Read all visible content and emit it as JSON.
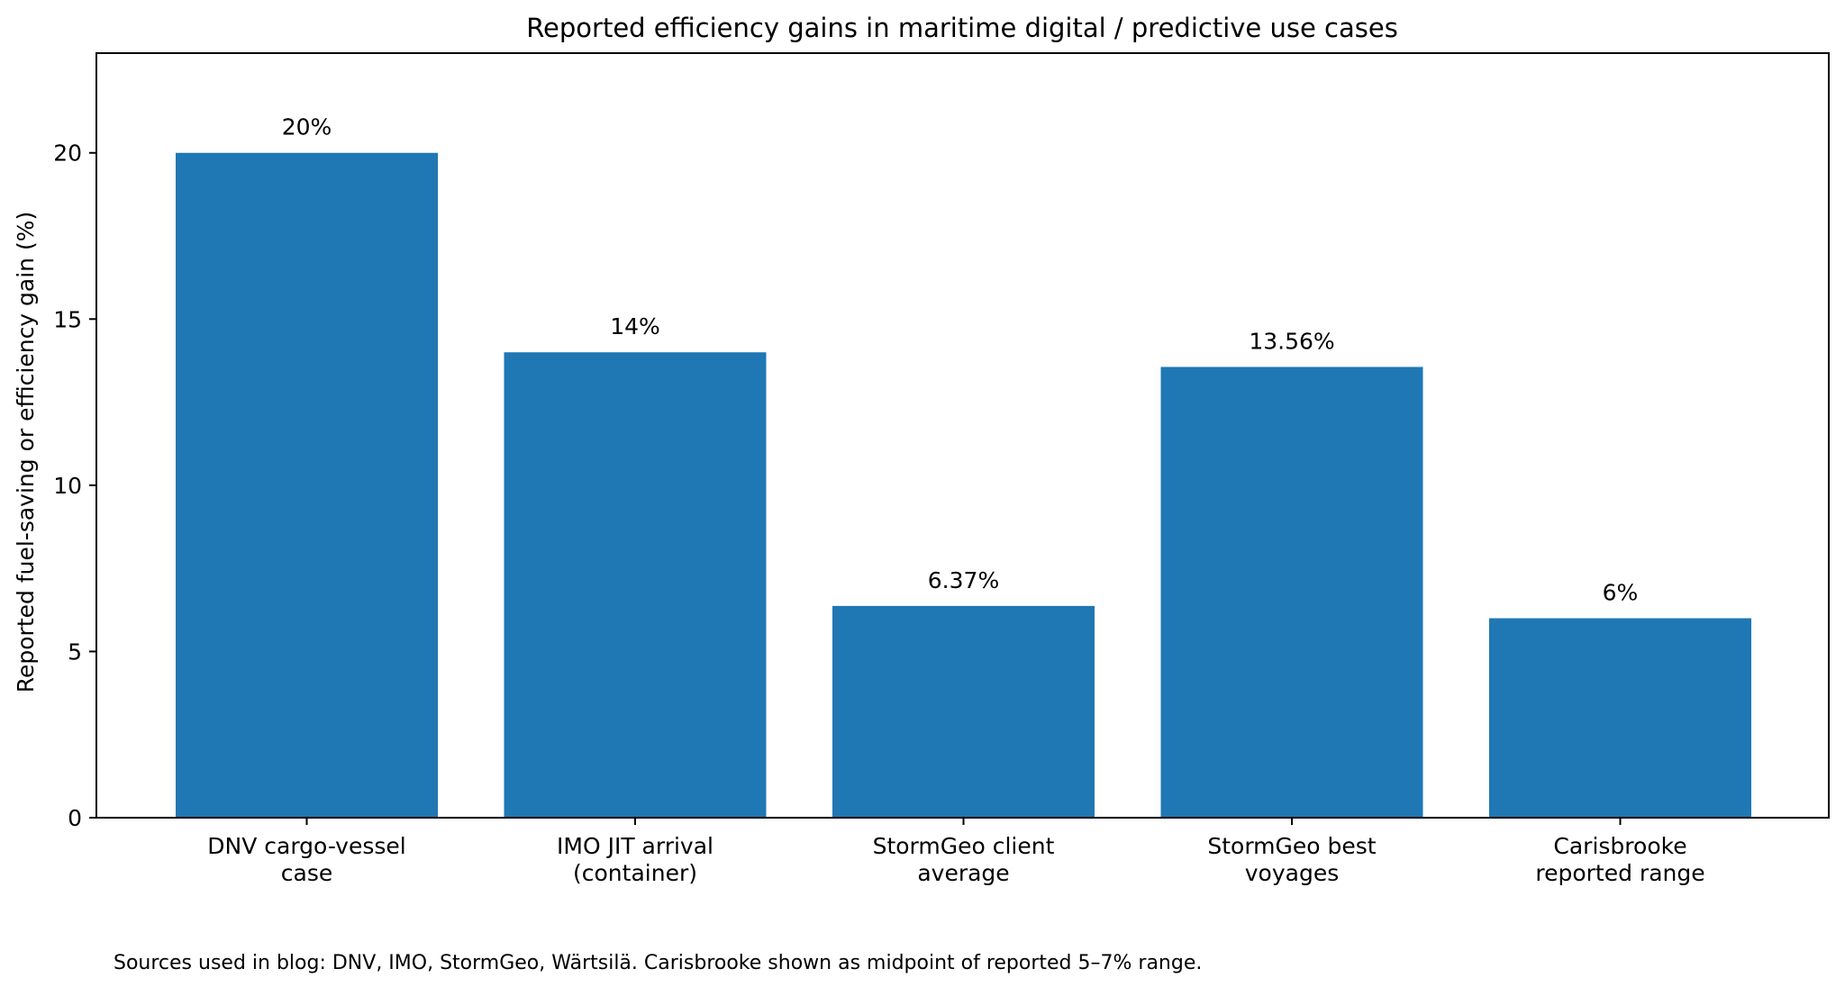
{
  "chart_data": {
    "type": "bar",
    "title": "Reported efficiency gains in maritime digital / predictive use cases",
    "xlabel": "",
    "ylabel": "Reported fuel-saving or efficiency gain (%)",
    "ylim": [
      0,
      23
    ],
    "yticks": [
      0,
      5,
      10,
      15,
      20
    ],
    "grid": false,
    "categories": [
      [
        "DNV cargo-vessel",
        "case"
      ],
      [
        "IMO JIT arrival",
        "(container)"
      ],
      [
        "StormGeo client",
        "average"
      ],
      [
        "StormGeo best",
        "voyages"
      ],
      [
        "Carisbrooke",
        "reported range"
      ]
    ],
    "values": [
      20,
      14,
      6.37,
      13.56,
      6
    ],
    "data_labels": [
      "20%",
      "14%",
      "6.37%",
      "13.56%",
      "6%"
    ],
    "bar_color": "#1f77b4"
  },
  "footnote": "Sources used in blog: DNV, IMO, StormGeo, Wärtsilä. Carisbrooke shown as midpoint of reported 5–7% range."
}
